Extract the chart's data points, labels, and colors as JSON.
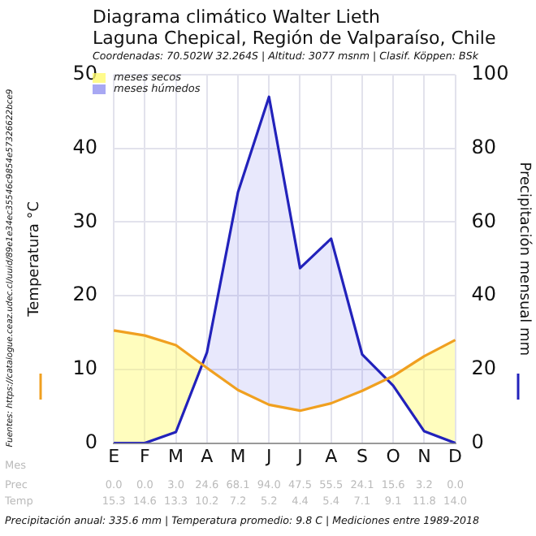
{
  "chart_data": {
    "type": "line",
    "title": "Diagrama climático Walter Lieth",
    "subtitle": "Laguna Chepical, Región de Valparaíso, Chile",
    "ylabel": "Temperatura °C",
    "y2label": "Precipitación mensual mm",
    "categories": [
      "E",
      "F",
      "M",
      "A",
      "M",
      "J",
      "J",
      "A",
      "S",
      "O",
      "N",
      "D"
    ],
    "series": [
      {
        "color": "#f0a020",
        "values": [
          15.3,
          14.6,
          13.3,
          10.2,
          7.2,
          5.2,
          4.4,
          5.4,
          7.1,
          9.1,
          11.8,
          14.0
        ],
        "value_labels": [
          "15.3",
          "14.6",
          "13.3",
          "10.2",
          "7.2",
          "5.2",
          "4.4",
          "5.4",
          "7.1",
          "9.1",
          "11.8",
          "14.0"
        ]
      },
      {
        "color": "#2222bb",
        "axis": "y2",
        "values": [
          0.0,
          0.0,
          3.0,
          24.6,
          68.1,
          94.0,
          47.5,
          55.5,
          24.1,
          15.6,
          3.2,
          0.0
        ],
        "value_labels": [
          "0.0",
          "0.0",
          "3.0",
          "24.6",
          "68.1",
          "94.0",
          "47.5",
          "55.5",
          "24.1",
          "15.6",
          "3.2",
          "0.0"
        ]
      }
    ],
    "ylim": [
      0,
      50
    ],
    "yticks": [
      0,
      10,
      20,
      30,
      40,
      50
    ],
    "y2lim": [
      0,
      100
    ],
    "y2ticks": [
      0,
      20,
      40,
      60,
      80,
      100
    ],
    "grid": true,
    "legend": false,
    "marker": "none",
    "line_style": "solid",
    "annotations": [
      "Coordenadas: 70.502W 32.264S | Altitud: 3077 msnm | Clasif. Köppen: BSk",
      "meses secos",
      "meses húmedos",
      "Mes",
      "Prec",
      "Temp",
      "Precipitación anual: 335.6 mm | Temperatura promedio: 9.8 C | Mediciones entre 1989-2018",
      "Fuentes: https://catalogue.ceaz.udec.cl/uuid/89e1e34ec35546c9854e57326622bce9"
    ]
  }
}
